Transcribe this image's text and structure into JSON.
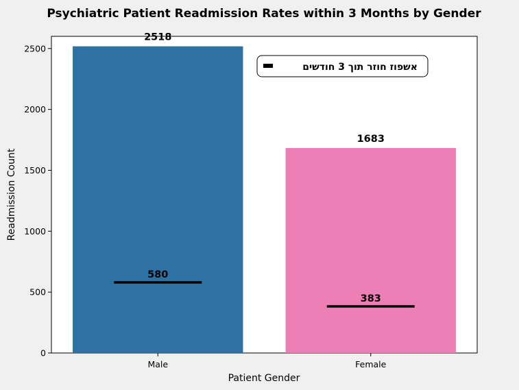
{
  "chart_data": {
    "type": "bar",
    "title": "Psychiatric Patient Readmission Rates within 3 Months by Gender",
    "xlabel": "Patient Gender",
    "ylabel": "Readmission Count",
    "categories": [
      "Male",
      "Female"
    ],
    "series": [
      {
        "values": [
          2518,
          1683
        ],
        "colors": [
          "#2e72a4",
          "#ec7fb6"
        ]
      },
      {
        "name": "אשפוז חוזר תוך 3 חודשים",
        "type": "marker-line",
        "values": [
          580,
          383
        ],
        "color": "#000000"
      }
    ],
    "ylim": [
      0,
      2600
    ],
    "yticks": [
      "0",
      "500",
      "1000",
      "1500",
      "2000",
      "2500"
    ],
    "grid": false,
    "legend": {
      "position": "top-right"
    }
  }
}
